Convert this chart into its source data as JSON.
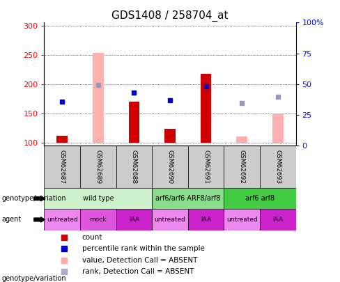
{
  "title": "GDS1408 / 258704_at",
  "samples": [
    "GSM62687",
    "GSM62689",
    "GSM62688",
    "GSM62690",
    "GSM62691",
    "GSM62692",
    "GSM62693"
  ],
  "ylim_left": [
    95,
    305
  ],
  "ylim_right": [
    0,
    100
  ],
  "yticks_left": [
    100,
    150,
    200,
    250,
    300
  ],
  "yticks_right": [
    0,
    25,
    50,
    75,
    100
  ],
  "yticklabels_right": [
    "0",
    "25",
    "50",
    "75",
    "100%"
  ],
  "red_bars": {
    "GSM62687": 112,
    "GSM62688": 170,
    "GSM62690": 124,
    "GSM62691": 218
  },
  "pink_bars": {
    "GSM62689": 253,
    "GSM62692": 111,
    "GSM62693": 150
  },
  "blue_squares": {
    "GSM62687": 170,
    "GSM62688": 186,
    "GSM62690": 172,
    "GSM62691": 196
  },
  "light_blue_squares": {
    "GSM62689": 199,
    "GSM62692": 168,
    "GSM62693": 178
  },
  "genotype_groups": [
    {
      "label": "wild type",
      "start": 0,
      "end": 3,
      "color": "#ccf2cc"
    },
    {
      "label": "arf6/arf6 ARF8/arf8",
      "start": 3,
      "end": 5,
      "color": "#88dd88"
    },
    {
      "label": "arf6 arf8",
      "start": 5,
      "end": 7,
      "color": "#44cc44"
    }
  ],
  "agent_groups": [
    {
      "label": "untreated",
      "start": 0,
      "end": 1,
      "color": "#ee88ee"
    },
    {
      "label": "mock",
      "start": 1,
      "end": 2,
      "color": "#dd55dd"
    },
    {
      "label": "IAA",
      "start": 2,
      "end": 3,
      "color": "#cc22cc"
    },
    {
      "label": "untreated",
      "start": 3,
      "end": 4,
      "color": "#ee88ee"
    },
    {
      "label": "IAA",
      "start": 4,
      "end": 5,
      "color": "#cc22cc"
    },
    {
      "label": "untreated",
      "start": 5,
      "end": 6,
      "color": "#ee88ee"
    },
    {
      "label": "IAA",
      "start": 6,
      "end": 7,
      "color": "#cc22cc"
    }
  ],
  "legend_items": [
    {
      "label": "count",
      "color": "#cc0000"
    },
    {
      "label": "percentile rank within the sample",
      "color": "#0000cc"
    },
    {
      "label": "value, Detection Call = ABSENT",
      "color": "#ffaaaa"
    },
    {
      "label": "rank, Detection Call = ABSENT",
      "color": "#aaaacc"
    }
  ],
  "red_color": "#cc0000",
  "pink_color": "#ffb0b0",
  "blue_color": "#0000cc",
  "light_blue_color": "#9999bb",
  "bar_bottom": 100,
  "bar_width": 0.3,
  "gsm_label_fontsize": 6.5,
  "title_fontsize": 11
}
